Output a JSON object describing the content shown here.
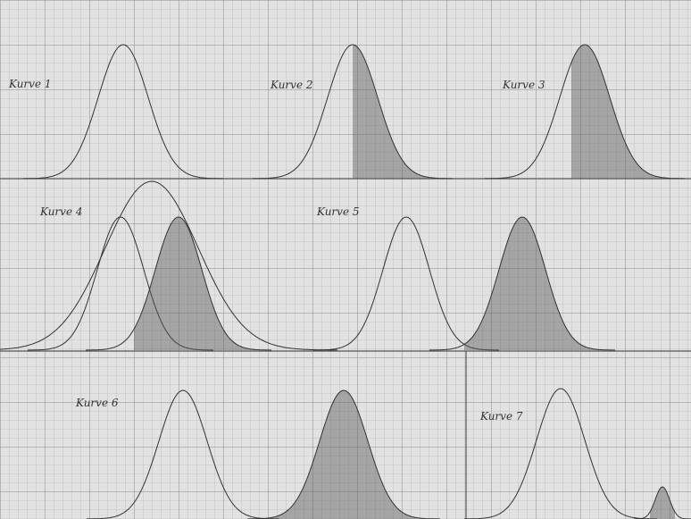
{
  "labels": [
    "Kurve 1",
    "Kurve 2",
    "Kurve 3",
    "Kurve 4",
    "Kurve 5",
    "Kurve 6",
    "Kurve 7"
  ]
}
